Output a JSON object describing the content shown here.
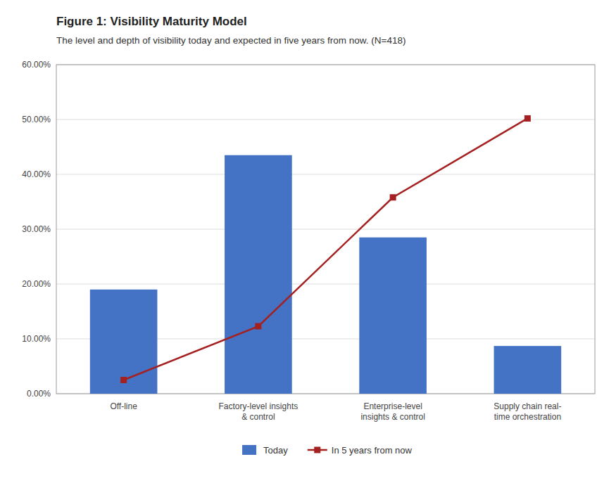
{
  "chart_data": {
    "type": "bar",
    "title": "Figure 1: Visibility Maturity Model",
    "subtitle": "The level and depth of visibility today and expected in five years from now. (N=418)",
    "categories": [
      "Off-line",
      "Factory-level insights\n& control",
      "Enterprise-level\ninsights & control",
      "Supply chain real-\ntime orchestration"
    ],
    "series": [
      {
        "name": "Today",
        "type": "bar",
        "color": "#4472C4",
        "values": [
          0.19,
          0.435,
          0.285,
          0.087
        ]
      },
      {
        "name": "In 5 years from now",
        "type": "line",
        "color": "#A52020",
        "marker": "square",
        "values": [
          0.025,
          0.123,
          0.358,
          0.502
        ]
      }
    ],
    "ylim": [
      0,
      0.6
    ],
    "yticks": [
      {
        "value": 0.0,
        "label": "0.00%"
      },
      {
        "value": 0.1,
        "label": "10.00%"
      },
      {
        "value": 0.2,
        "label": "20.00%"
      },
      {
        "value": 0.3,
        "label": "30.00%"
      },
      {
        "value": 0.4,
        "label": "40.00%"
      },
      {
        "value": 0.5,
        "label": "50.00%"
      },
      {
        "value": 0.6,
        "label": "60.00%"
      }
    ],
    "grid": true,
    "legend": "bottom"
  }
}
